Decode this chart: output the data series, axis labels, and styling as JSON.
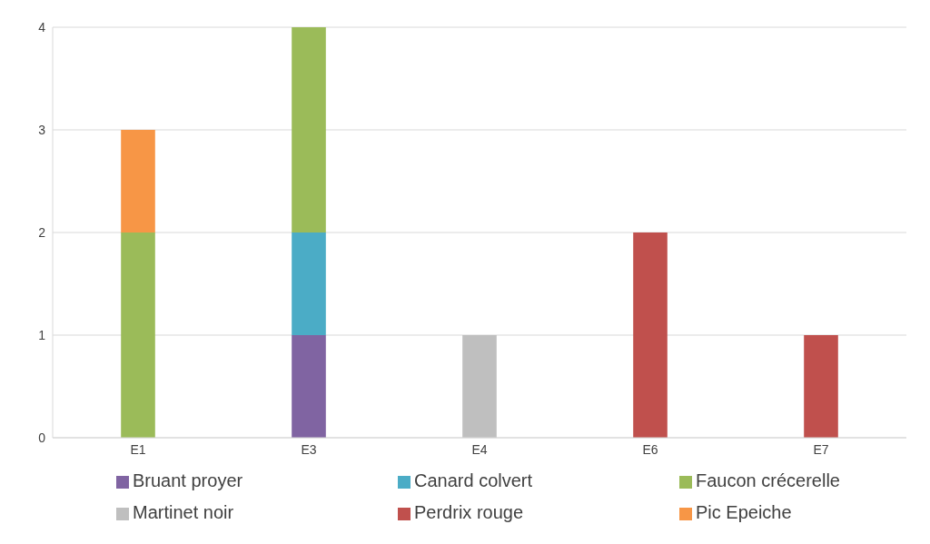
{
  "chart_data": {
    "type": "bar",
    "stacked": true,
    "categories": [
      "E1",
      "E3",
      "E4",
      "E6",
      "E7"
    ],
    "series": [
      {
        "name": "Bruant proyer",
        "color": "#8064a2",
        "values": [
          null,
          1,
          null,
          null,
          null
        ]
      },
      {
        "name": "Canard colvert",
        "color": "#4bacc6",
        "values": [
          null,
          1,
          null,
          null,
          null
        ]
      },
      {
        "name": "Faucon crécerelle",
        "color": "#9bbb59",
        "values": [
          2,
          2,
          null,
          null,
          null
        ]
      },
      {
        "name": "Martinet noir",
        "color": "#bfbfbf",
        "values": [
          null,
          null,
          1,
          null,
          null
        ]
      },
      {
        "name": "Perdrix rouge",
        "color": "#c0504d",
        "values": [
          null,
          null,
          null,
          2,
          1
        ]
      },
      {
        "name": "Pic Epeiche",
        "color": "#f79646",
        "values": [
          1,
          null,
          null,
          null,
          null
        ]
      }
    ],
    "ylim": [
      0,
      4
    ],
    "yticks": [
      0,
      1,
      2,
      3,
      4
    ],
    "grid": "y",
    "legend": "bottom"
  }
}
